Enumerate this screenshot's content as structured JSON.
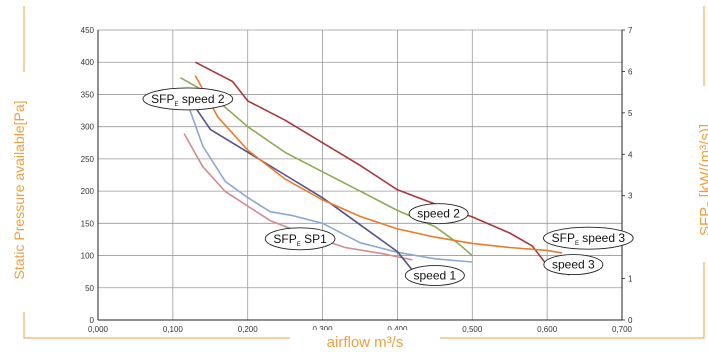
{
  "chart_data": {
    "type": "line",
    "xlabel": "airflow m³/s",
    "ylabel": "Static Pressure available[Pa]",
    "y2label": "SFP",
    "y2label_sub": "E",
    "y2label_units": "[kW/(m³/s)]",
    "xlim": [
      0,
      0.7
    ],
    "ylim": [
      0,
      450
    ],
    "y2lim": [
      0,
      7
    ],
    "x_ticks": [
      "0,000",
      "0,100",
      "0,200",
      "0,300",
      "0,400",
      "0,500",
      "0,600",
      "0,700"
    ],
    "y_ticks": [
      "0",
      "50",
      "100",
      "150",
      "200",
      "250",
      "300",
      "350",
      "400",
      "450"
    ],
    "y2_ticks": [
      "0",
      "1",
      "2",
      "3",
      "4",
      "5",
      "6",
      "7"
    ],
    "grid": true,
    "colors": {
      "accent": "#f0a040",
      "grid": "#9a9a9a",
      "axis": "#222222"
    },
    "series": [
      {
        "name": "speed 3",
        "color": "#a8383a",
        "points": [
          [
            0.13,
            400
          ],
          [
            0.18,
            370
          ],
          [
            0.2,
            340
          ],
          [
            0.25,
            310
          ],
          [
            0.3,
            275
          ],
          [
            0.35,
            240
          ],
          [
            0.4,
            202
          ],
          [
            0.45,
            180
          ],
          [
            0.5,
            160
          ],
          [
            0.55,
            135
          ],
          [
            0.58,
            115
          ],
          [
            0.6,
            85
          ],
          [
            0.63,
            70
          ]
        ]
      },
      {
        "name": "speed 2",
        "color": "#8cac4e",
        "points": [
          [
            0.11,
            376
          ],
          [
            0.15,
            350
          ],
          [
            0.2,
            300
          ],
          [
            0.25,
            260
          ],
          [
            0.3,
            230
          ],
          [
            0.35,
            200
          ],
          [
            0.4,
            170
          ],
          [
            0.45,
            145
          ],
          [
            0.48,
            120
          ],
          [
            0.5,
            100
          ]
        ]
      },
      {
        "name": "speed 1",
        "color": "#8aa8d2",
        "points": [
          [
            0.12,
            335
          ],
          [
            0.14,
            270
          ],
          [
            0.17,
            215
          ],
          [
            0.2,
            190
          ],
          [
            0.23,
            168
          ],
          [
            0.26,
            162
          ],
          [
            0.3,
            150
          ],
          [
            0.35,
            120
          ],
          [
            0.4,
            105
          ],
          [
            0.45,
            95
          ],
          [
            0.5,
            90
          ]
        ]
      },
      {
        "name": "SFP_E SP1",
        "color": "#d48a92",
        "y_axis": "right",
        "points": [
          [
            0.115,
            4.5
          ],
          [
            0.14,
            3.7
          ],
          [
            0.17,
            3.1
          ],
          [
            0.2,
            2.75
          ],
          [
            0.23,
            2.4
          ],
          [
            0.28,
            2.05
          ],
          [
            0.33,
            1.75
          ],
          [
            0.38,
            1.6
          ],
          [
            0.42,
            1.45
          ]
        ]
      },
      {
        "name": "SFP_E speed 2",
        "color": "#55518c",
        "y_axis": "right",
        "points": [
          [
            0.12,
            5.4
          ],
          [
            0.15,
            4.6
          ],
          [
            0.2,
            4.05
          ],
          [
            0.25,
            3.5
          ],
          [
            0.3,
            2.95
          ],
          [
            0.35,
            2.3
          ],
          [
            0.4,
            1.65
          ],
          [
            0.42,
            1.2
          ],
          [
            0.425,
            1.0
          ]
        ]
      },
      {
        "name": "SFP_E speed 3",
        "color": "#e87c2a",
        "y_axis": "right",
        "points": [
          [
            0.13,
            5.9
          ],
          [
            0.16,
            4.9
          ],
          [
            0.2,
            4.1
          ],
          [
            0.25,
            3.4
          ],
          [
            0.3,
            2.9
          ],
          [
            0.35,
            2.5
          ],
          [
            0.4,
            2.2
          ],
          [
            0.45,
            2.0
          ],
          [
            0.5,
            1.85
          ],
          [
            0.55,
            1.75
          ],
          [
            0.6,
            1.68
          ],
          [
            0.62,
            1.62
          ]
        ]
      }
    ],
    "annotations": [
      {
        "id": "sfp2",
        "main": "SFP",
        "sub": "E",
        "rest": " speed 2",
        "x": 0.12,
        "y": 343
      },
      {
        "id": "speed2",
        "main": "speed 2",
        "sub": "",
        "rest": "",
        "x": 0.455,
        "y": 165
      },
      {
        "id": "sfpsp1",
        "main": "SFP",
        "sub": "E",
        "rest": " SP1",
        "x": 0.27,
        "y": 126
      },
      {
        "id": "sfp3",
        "main": "SFP",
        "sub": "E",
        "rest": " speed 3",
        "x": 0.655,
        "y": 127
      },
      {
        "id": "speed1",
        "main": "speed 1",
        "sub": "",
        "rest": "",
        "x": 0.45,
        "y": 69
      },
      {
        "id": "speed3",
        "main": "speed 3",
        "sub": "",
        "rest": "",
        "x": 0.635,
        "y": 86
      }
    ]
  }
}
